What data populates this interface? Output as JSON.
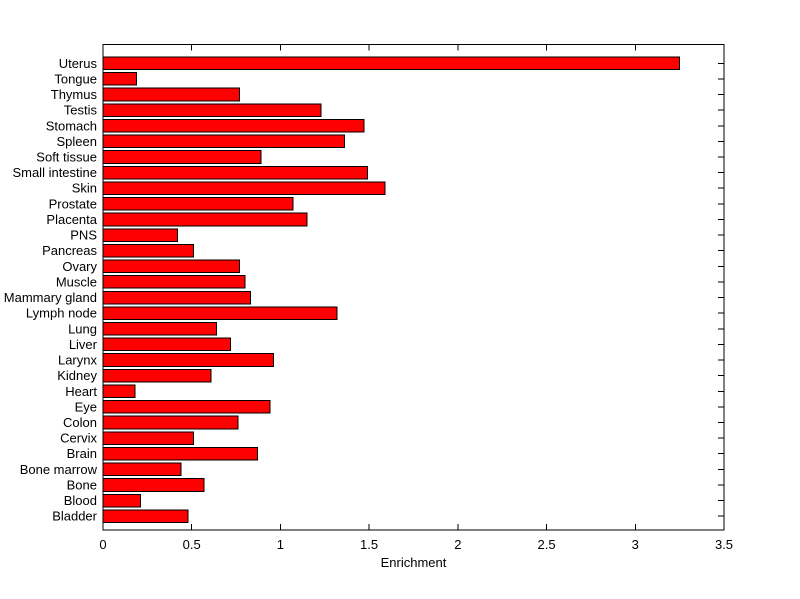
{
  "figure": {
    "background_color": "#ffffff"
  },
  "chart_data": {
    "type": "bar",
    "orientation": "horizontal",
    "title": "",
    "xlabel": "Enrichment",
    "ylabel": "",
    "categories": [
      "Uterus",
      "Tongue",
      "Thymus",
      "Testis",
      "Stomach",
      "Spleen",
      "Soft tissue",
      "Small intestine",
      "Skin",
      "Prostate",
      "Placenta",
      "PNS",
      "Pancreas",
      "Ovary",
      "Muscle",
      "Mammary gland",
      "Lymph node",
      "Lung",
      "Liver",
      "Larynx",
      "Kidney",
      "Heart",
      "Eye",
      "Colon",
      "Cervix",
      "Brain",
      "Bone marrow",
      "Bone",
      "Blood",
      "Bladder"
    ],
    "values": [
      3.25,
      0.19,
      0.77,
      1.23,
      1.47,
      1.36,
      0.89,
      1.49,
      1.59,
      1.07,
      1.15,
      0.42,
      0.51,
      0.77,
      0.8,
      0.83,
      1.32,
      0.64,
      0.72,
      0.96,
      0.61,
      0.18,
      0.94,
      0.76,
      0.51,
      0.87,
      0.44,
      0.57,
      0.21,
      0.48
    ],
    "xlim": [
      0,
      3.5
    ],
    "xticks": [
      0,
      0.5,
      1,
      1.5,
      2,
      2.5,
      3,
      3.5
    ],
    "xtick_labels": [
      "0",
      "0.5",
      "1",
      "1.5",
      "2",
      "2.5",
      "3",
      "3.5"
    ],
    "bar_color": "#ff0000",
    "bar_edge_color": "#000000",
    "grid": false,
    "legend": null,
    "box": true,
    "tick_direction": "in"
  }
}
